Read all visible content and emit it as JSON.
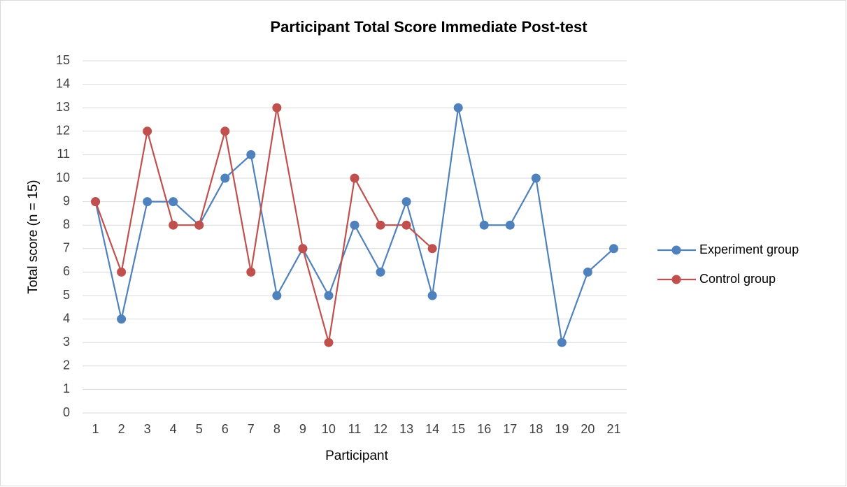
{
  "chart_data": {
    "type": "line",
    "title": "Participant Total Score Immediate Post-test",
    "x_label": "Participant",
    "y_label": "Total score (n = 15)",
    "categories": [
      "1",
      "2",
      "3",
      "4",
      "5",
      "6",
      "7",
      "8",
      "9",
      "10",
      "11",
      "12",
      "13",
      "14",
      "15",
      "16",
      "17",
      "18",
      "19",
      "20",
      "21"
    ],
    "series": [
      {
        "name": "Experiment group",
        "color": "#4f81bd",
        "values": [
          9,
          4,
          9,
          9,
          8,
          10,
          11,
          5,
          7,
          5,
          8,
          6,
          9,
          5,
          13,
          8,
          8,
          10,
          3,
          6,
          7
        ]
      },
      {
        "name": "Control group",
        "color": "#c0504d",
        "values": [
          9,
          6,
          12,
          8,
          8,
          12,
          6,
          13,
          7,
          3,
          10,
          8,
          8,
          7,
          null,
          null,
          null,
          null,
          null,
          null,
          null
        ]
      }
    ],
    "ylim": [
      0,
      15
    ],
    "yticks": [
      0,
      1,
      2,
      3,
      4,
      5,
      6,
      7,
      8,
      9,
      10,
      11,
      12,
      13,
      14,
      15
    ],
    "grid": true,
    "legend": "right"
  }
}
